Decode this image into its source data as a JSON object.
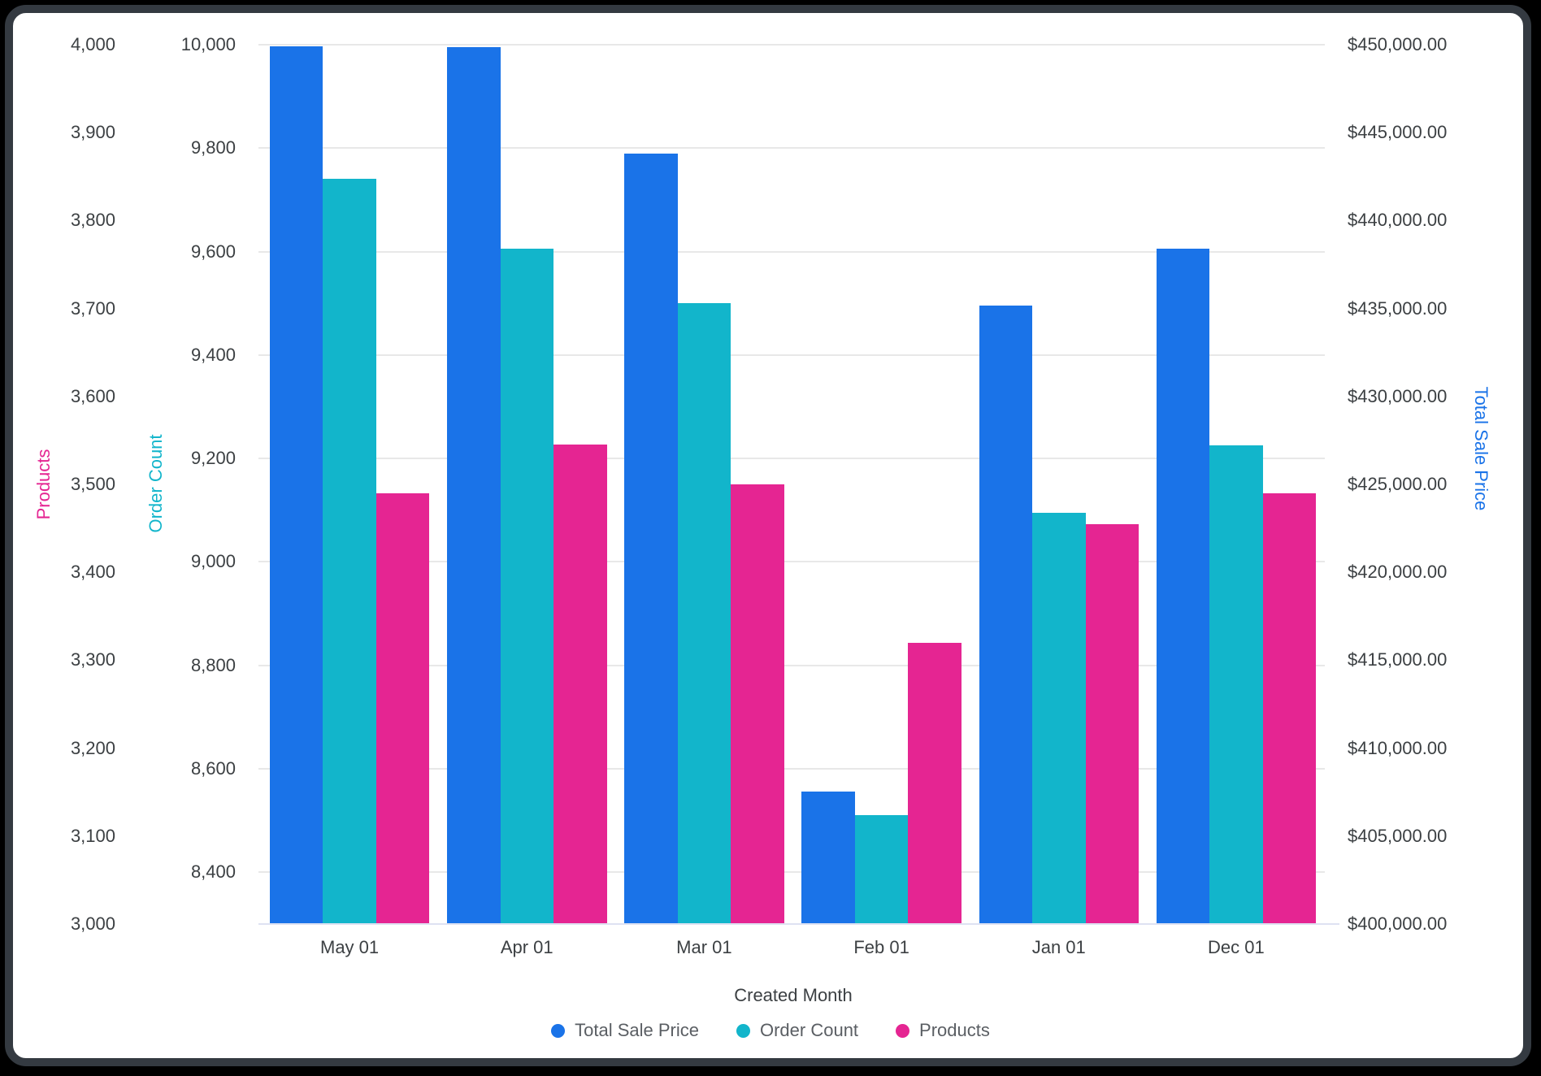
{
  "chart_data": {
    "type": "bar",
    "title": "",
    "categories": [
      "May 01",
      "Apr 01",
      "Mar 01",
      "Feb 01",
      "Jan 01",
      "Dec 01"
    ],
    "series": [
      {
        "name": "Total Sale Price",
        "axis": "total_sale_price",
        "color": "#1A73E8",
        "values": [
          449900,
          449850,
          443800,
          407550,
          435150,
          438400
        ]
      },
      {
        "name": "Order Count",
        "axis": "order_count",
        "color": "#12B5CB",
        "values": [
          9740,
          9605,
          9500,
          8510,
          9095,
          9225
        ]
      },
      {
        "name": "Products",
        "axis": "products",
        "color": "#E52592",
        "values": [
          3490,
          3545,
          3500,
          3320,
          3455,
          3490
        ]
      }
    ],
    "xlabel": "Created Month",
    "axes": {
      "products": {
        "label": "Products",
        "side": "left-outer",
        "color": "#E52592",
        "min": 3000,
        "max": 4000,
        "tick_values": [
          4000,
          3900,
          3800,
          3700,
          3600,
          3500,
          3400,
          3300,
          3200,
          3100,
          3000
        ],
        "tick_labels": [
          "4,000",
          "3,900",
          "3,800",
          "3,700",
          "3,600",
          "3,500",
          "3,400",
          "3,300",
          "3,200",
          "3,100",
          "3,000"
        ]
      },
      "order_count": {
        "label": "Order Count",
        "side": "left-inner",
        "color": "#12B5CB",
        "min": 8300,
        "max": 10000,
        "tick_values": [
          10000,
          9800,
          9600,
          9400,
          9200,
          9000,
          8800,
          8600,
          8400
        ],
        "tick_labels": [
          "10,000",
          "9,800",
          "9,600",
          "9,400",
          "9,200",
          "9,000",
          "8,800",
          "8,600",
          "8,400"
        ]
      },
      "total_sale_price": {
        "label": "Total Sale Price",
        "side": "right",
        "color": "#1A73E8",
        "min": 400000,
        "max": 450000,
        "tick_values": [
          450000,
          445000,
          440000,
          435000,
          430000,
          425000,
          420000,
          415000,
          410000,
          405000,
          400000
        ],
        "tick_labels": [
          "$450,000.00",
          "$445,000.00",
          "$440,000.00",
          "$435,000.00",
          "$430,000.00",
          "$425,000.00",
          "$420,000.00",
          "$415,000.00",
          "$410,000.00",
          "$405,000.00",
          "$400,000.00"
        ]
      }
    },
    "legend": {
      "position": "bottom",
      "items": [
        "Total Sale Price",
        "Order Count",
        "Products"
      ]
    },
    "grid": {
      "horizontal": true,
      "aligned_to": "order_count"
    }
  }
}
